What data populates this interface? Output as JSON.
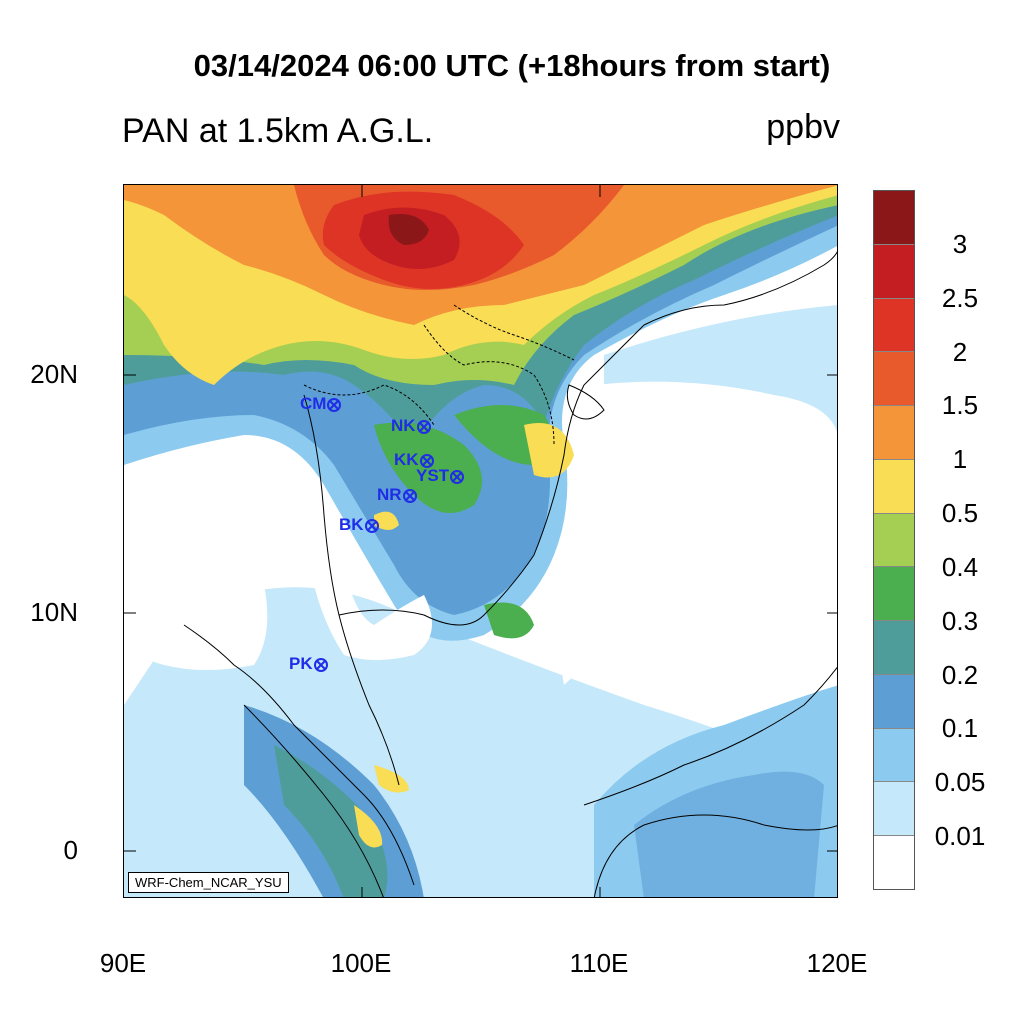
{
  "title": "03/14/2024 06:00 UTC (+18hours from start)",
  "variable_title": "PAN at 1.5km A.G.L.",
  "units": "ppbv",
  "model_label": "WRF-Chem_NCAR_YSU",
  "axes": {
    "lat_labels": [
      "20N",
      "10N",
      "0"
    ],
    "lon_labels": [
      "90E",
      "100E",
      "110E",
      "120E"
    ]
  },
  "stations": [
    {
      "code": "CM"
    },
    {
      "code": "NK"
    },
    {
      "code": "KK"
    },
    {
      "code": "YST"
    },
    {
      "code": "NR"
    },
    {
      "code": "BK"
    },
    {
      "code": "PK"
    }
  ],
  "colorbar": {
    "labels": [
      "3",
      "2.5",
      "2",
      "1.5",
      "1",
      "0.5",
      "0.4",
      "0.3",
      "0.2",
      "0.1",
      "0.05",
      "0.01"
    ],
    "colors": [
      "#8c1719",
      "#c41e22",
      "#de3426",
      "#e85a2b",
      "#f39538",
      "#f8dd55",
      "#a5cf52",
      "#4bae4f",
      "#4f9d9b",
      "#5d9fd5",
      "#8ccbef",
      "#c5e8fa",
      "#ffffff"
    ]
  },
  "colors": {
    "station": "#1f2de8",
    "coastline": "#000000"
  }
}
